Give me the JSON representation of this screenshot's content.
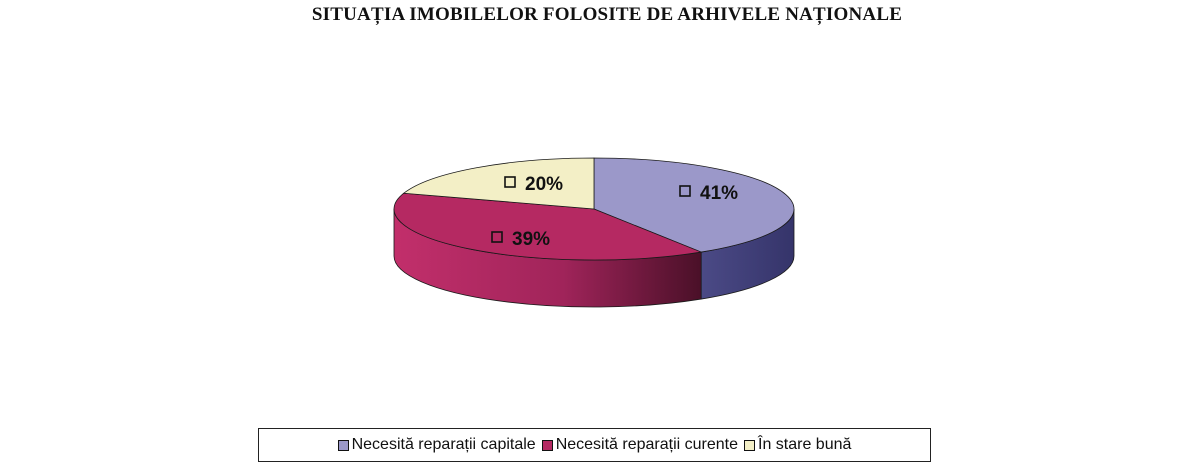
{
  "chart_data": {
    "type": "pie",
    "title": "SITUAȚIA IMOBILELOR FOLOSITE DE ARHIVELE NAȚIONALE",
    "style": "3d",
    "slices": [
      {
        "label": "Necesită reparații capitale",
        "value": 41,
        "display": "41%",
        "color": "#9b98c9",
        "side_color": "#3f3e75"
      },
      {
        "label": "Necesită reparații curente",
        "value": 39,
        "display": "39%",
        "color": "#b52962",
        "side_color": "#8a1f4a"
      },
      {
        "label": "În stare bună",
        "value": 20,
        "display": "20%",
        "color": "#f3efc6",
        "side_color": "#d6d1a2"
      }
    ],
    "legend_position": "bottom"
  }
}
